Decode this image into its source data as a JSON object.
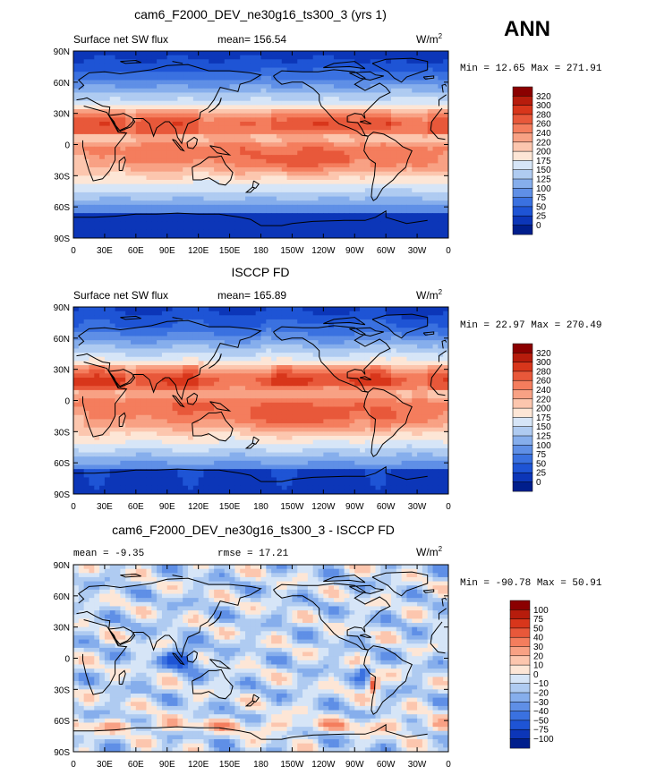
{
  "season": "ANN",
  "panels": [
    {
      "title": "cam6_F2000_DEV_ne30g16_ts300_3 (yrs 1)",
      "left_text": "Surface net SW flux",
      "mid_text": "mean= 156.54",
      "units": "W/m",
      "units_sup": "2",
      "stats": "Min =  12.65 Max = 271.91",
      "levels": [
        "320",
        "300",
        "280",
        "260",
        "240",
        "220",
        "200",
        "175",
        "150",
        "125",
        "100",
        "75",
        "50",
        "25",
        "0"
      ],
      "colors": [
        "#8B0000",
        "#B71C0C",
        "#D8361B",
        "#E8583A",
        "#F47D5D",
        "#F8A184",
        "#FCC6AE",
        "#FDE6D6",
        "#D6E5F7",
        "#AFCBF1",
        "#86AEEC",
        "#5F8FE6",
        "#3A71E0",
        "#1E54D5",
        "#0C36B8",
        "#001E8C"
      ]
    },
    {
      "title": "ISCCP FD",
      "left_text": "Surface net SW flux",
      "mid_text": "mean= 165.89",
      "units": "W/m",
      "units_sup": "2",
      "stats": "Min =  22.97 Max = 270.49",
      "levels": [
        "320",
        "300",
        "280",
        "260",
        "240",
        "220",
        "200",
        "175",
        "150",
        "125",
        "100",
        "75",
        "50",
        "25",
        "0"
      ],
      "colors": [
        "#8B0000",
        "#B71C0C",
        "#D8361B",
        "#E8583A",
        "#F47D5D",
        "#F8A184",
        "#FCC6AE",
        "#FDE6D6",
        "#D6E5F7",
        "#AFCBF1",
        "#86AEEC",
        "#5F8FE6",
        "#3A71E0",
        "#1E54D5",
        "#0C36B8",
        "#001E8C"
      ]
    },
    {
      "title": "cam6_F2000_DEV_ne30g16_ts300_3 - ISCCP FD",
      "left_text": "mean =  -9.35",
      "mid_text": "rmse =  17.21",
      "units": "W/m",
      "units_sup": "2",
      "stats": "Min = -90.78 Max =  50.91",
      "levels": [
        "100",
        "75",
        "50",
        "40",
        "30",
        "20",
        "10",
        "0",
        "−10",
        "−20",
        "−30",
        "−40",
        "−50",
        "−75",
        "−100"
      ],
      "colors": [
        "#8B0000",
        "#B71C0C",
        "#D8361B",
        "#E8583A",
        "#F47D5D",
        "#F8A184",
        "#FCC6AE",
        "#FDE6D6",
        "#D6E5F7",
        "#AFCBF1",
        "#86AEEC",
        "#5F8FE6",
        "#3A71E0",
        "#1E54D5",
        "#0C36B8",
        "#001E8C"
      ]
    }
  ],
  "lat_ticks": [
    "90N",
    "60N",
    "30N",
    "0",
    "30S",
    "60S",
    "90S"
  ],
  "lon_ticks": [
    "0",
    "30E",
    "60E",
    "90E",
    "120E",
    "150E",
    "180",
    "150W",
    "120W",
    "90W",
    "60W",
    "30W",
    "0"
  ]
}
